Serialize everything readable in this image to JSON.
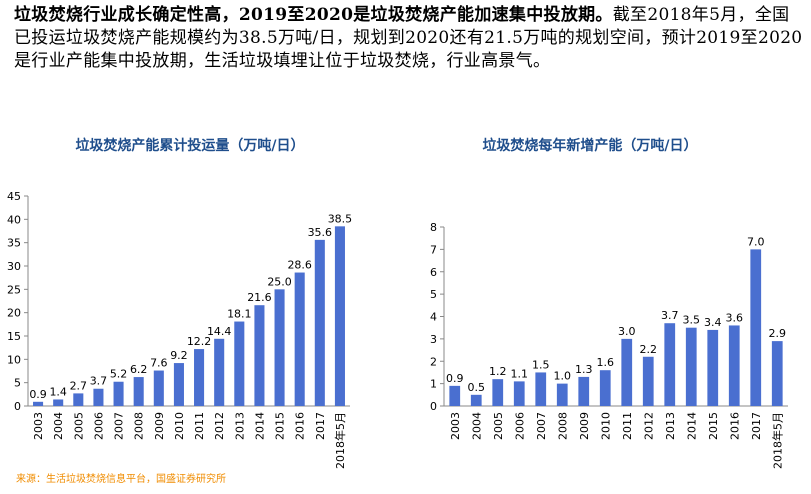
{
  "intro": {
    "lead": "垃圾焚烧行业成长确定性高，2019至2020是垃圾焚烧产能加速集中投放期。",
    "body": "截至2018年5月，全国已投运垃圾焚烧产能规模约为38.5万吨/日，规划到2020还有21.5万吨的规划空间，预计2019至2020是行业产能集中投放期，生活垃圾填埋让位于垃圾焚烧，行业高景气。"
  },
  "source": "来源：生活垃圾焚烧信息平台，国盛证券研究所",
  "colors": {
    "bar": "#4a6fd0",
    "title": "#1f4e8c",
    "source": "#f08c00"
  },
  "chart_data": [
    {
      "type": "bar",
      "title": "垃圾焚烧产能累计投运量（万吨/日）",
      "categories": [
        "2003",
        "2004",
        "2005",
        "2006",
        "2007",
        "2008",
        "2009",
        "2010",
        "2011",
        "2012",
        "2013",
        "2014",
        "2015",
        "2016",
        "2017",
        "2018年5月"
      ],
      "values": [
        0.9,
        1.4,
        2.7,
        3.7,
        5.2,
        6.2,
        7.6,
        9.2,
        12.2,
        14.4,
        18.1,
        21.6,
        25.0,
        28.6,
        35.6,
        38.5
      ],
      "value_labels": [
        "0.9",
        "1.4",
        "2.7",
        "3.7",
        "5.2",
        "6.2",
        "7.6",
        "9.2",
        "12.2",
        "14.4",
        "18.1",
        "21.6",
        "25.0",
        "28.6",
        "35.6",
        "38.5"
      ],
      "ylim": [
        0,
        45
      ],
      "yticks": [
        0,
        5,
        10,
        15,
        20,
        25,
        30,
        35,
        40,
        45
      ],
      "grid": false
    },
    {
      "type": "bar",
      "title": "垃圾焚烧每年新增产能（万吨/日）",
      "categories": [
        "2003",
        "2004",
        "2005",
        "2006",
        "2007",
        "2008",
        "2009",
        "2010",
        "2011",
        "2012",
        "2013",
        "2014",
        "2015",
        "2016",
        "2017",
        "2018年5月"
      ],
      "values": [
        0.9,
        0.5,
        1.2,
        1.1,
        1.5,
        1.0,
        1.3,
        1.6,
        3.0,
        2.2,
        3.7,
        3.5,
        3.4,
        3.6,
        7.0,
        2.9
      ],
      "value_labels": [
        "0.9",
        "0.5",
        "1.2",
        "1.1",
        "1.5",
        "1.0",
        "1.3",
        "1.6",
        "3.0",
        "2.2",
        "3.7",
        "3.5",
        "3.4",
        "3.6",
        "7.0",
        "2.9"
      ],
      "ylim": [
        0,
        8
      ],
      "yticks": [
        0,
        1,
        2,
        3,
        4,
        5,
        6,
        7,
        8
      ],
      "grid": false
    }
  ]
}
